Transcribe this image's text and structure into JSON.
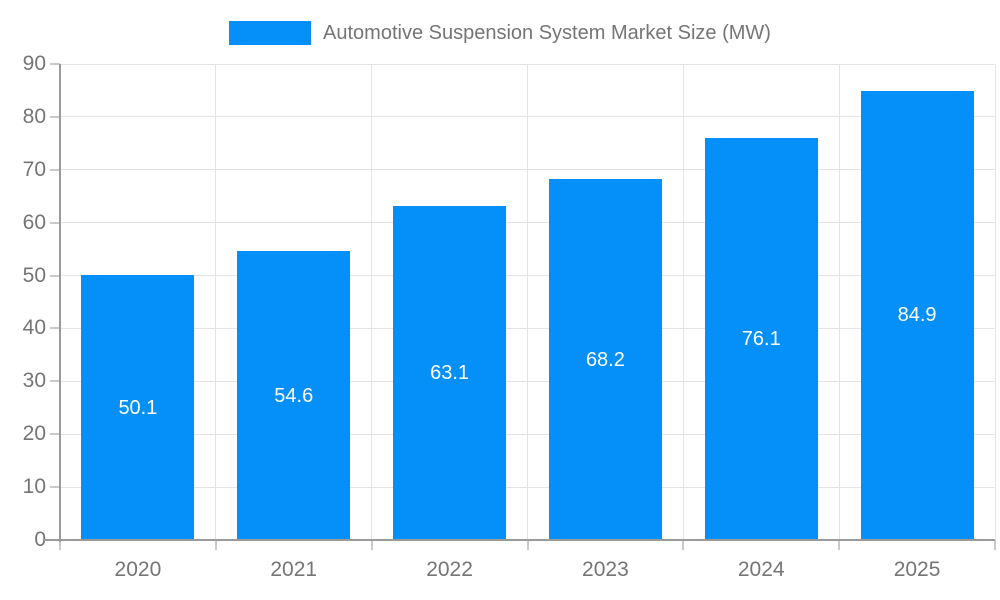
{
  "chart_data": {
    "type": "bar",
    "title": "Automotive Suspension System Market Size (MW)",
    "categories": [
      "2020",
      "2021",
      "2022",
      "2023",
      "2024",
      "2025"
    ],
    "values": [
      50.1,
      54.6,
      63.1,
      68.2,
      76.1,
      84.9
    ],
    "value_labels": [
      "50.1",
      "54.6",
      "63.1",
      "68.2",
      "76.1",
      "84.9"
    ],
    "y_ticks": [
      "0",
      "10",
      "20",
      "30",
      "40",
      "50",
      "60",
      "70",
      "80",
      "90"
    ],
    "ylim": [
      0,
      90
    ],
    "xlabel": "",
    "ylabel": "",
    "legend_position": "top",
    "grid": true,
    "colors": {
      "bar": "#0490f8",
      "value_label": "#ffffff",
      "axis_text": "#757575",
      "axis_line": "#9a9a9a",
      "gridline": "#e3e3e3",
      "tick": "#c9c9c9",
      "background": "#ffffff"
    }
  }
}
